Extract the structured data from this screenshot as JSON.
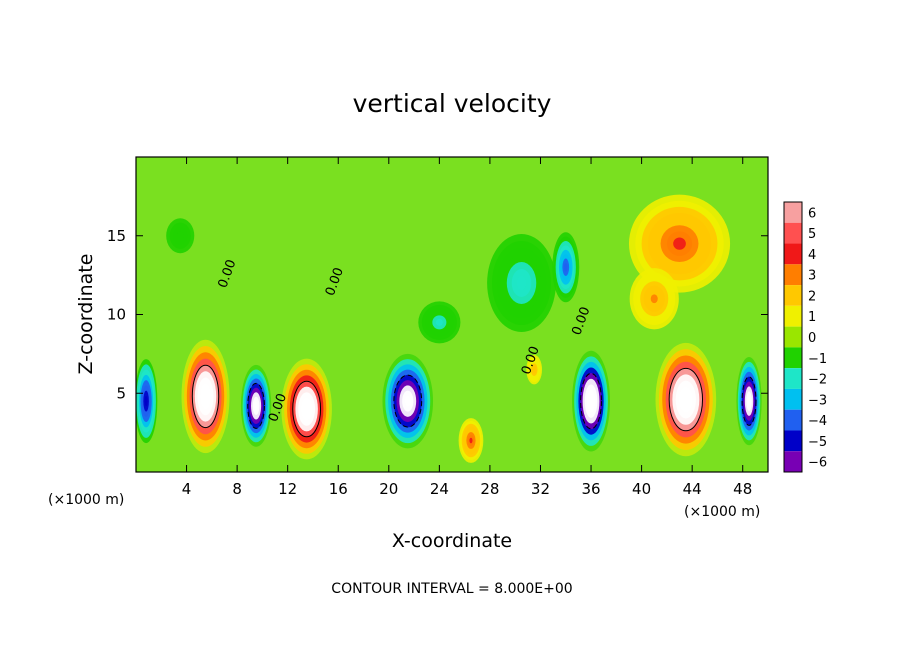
{
  "chart_data": {
    "type": "heatmap",
    "title": "vertical velocity",
    "xlabel": "X-coordinate",
    "ylabel": "Z-coordinate",
    "x_unit_left": "(×1000 m)",
    "x_unit_right": "(×1000 m)",
    "xlim": [
      0,
      50
    ],
    "ylim": [
      0,
      20
    ],
    "xticks": [
      4,
      8,
      12,
      16,
      20,
      24,
      28,
      32,
      36,
      40,
      44,
      48
    ],
    "xtick_labels": [
      "4",
      "8",
      "12",
      "16",
      "20",
      "24",
      "28",
      "32",
      "36",
      "40",
      "44",
      "48"
    ],
    "yticks": [
      5,
      10,
      15
    ],
    "ytick_labels": [
      "5",
      "10",
      "15"
    ],
    "footnote": "CONTOUR INTERVAL = 8.000E+00",
    "contour_label": "0.00",
    "colorbar": {
      "levels": [
        6,
        5,
        4,
        3,
        2,
        1,
        0,
        -1,
        -2,
        -3,
        -4,
        -5,
        -6
      ],
      "labels": [
        "6",
        "5",
        "4",
        "3",
        "2",
        "1",
        "0",
        "−1",
        "−2",
        "−3",
        "−4",
        "−5",
        "−6"
      ],
      "colors": [
        "#f7a0a0",
        "#ff5050",
        "#f01818",
        "#ff7e00",
        "#ffc800",
        "#f0f000",
        "#9ae600",
        "#20d200",
        "#1ee6c8",
        "#00c0f0",
        "#2060f0",
        "#0000c8",
        "#7800b4"
      ]
    },
    "background_color": "#7ae020",
    "features": [
      {
        "kind": "updraft-core",
        "x": 5.5,
        "z": 4.8,
        "sx": 1.9,
        "sz": 3.6,
        "w": 12
      },
      {
        "kind": "updraft-core",
        "x": 13.5,
        "z": 4.0,
        "sx": 2.0,
        "sz": 3.2,
        "w": 11
      },
      {
        "kind": "updraft-core",
        "x": 43.5,
        "z": 4.6,
        "sx": 2.4,
        "sz": 3.6,
        "w": 12
      },
      {
        "kind": "updraft",
        "x": 26.5,
        "z": 2.0,
        "sx": 1.1,
        "sz": 1.6,
        "w": 4
      },
      {
        "kind": "updraft",
        "x": 31.5,
        "z": 6.5,
        "sx": 0.8,
        "sz": 1.2,
        "w": 2.5
      },
      {
        "kind": "updraft",
        "x": 43.0,
        "z": 14.5,
        "sx": 4.5,
        "sz": 3.5,
        "w": 4.2
      },
      {
        "kind": "updraft",
        "x": 41.0,
        "z": 11.0,
        "sx": 2.5,
        "sz": 2.5,
        "w": 2.8
      },
      {
        "kind": "downdraft-core",
        "x": 9.5,
        "z": 4.2,
        "sx": 1.2,
        "sz": 2.6,
        "w": -10
      },
      {
        "kind": "downdraft-core",
        "x": 21.5,
        "z": 4.5,
        "sx": 2.0,
        "sz": 3.0,
        "w": -10
      },
      {
        "kind": "downdraft-core",
        "x": 36.0,
        "z": 4.5,
        "sx": 1.5,
        "sz": 3.2,
        "w": -12
      },
      {
        "kind": "downdraft-core",
        "x": 48.5,
        "z": 4.5,
        "sx": 1.0,
        "sz": 2.8,
        "w": -10
      },
      {
        "kind": "downdraft",
        "x": 0.8,
        "z": 4.5,
        "sx": 1.0,
        "sz": 3.0,
        "w": -6
      },
      {
        "kind": "downdraft",
        "x": 34.0,
        "z": 13.0,
        "sx": 1.2,
        "sz": 2.5,
        "w": -5
      },
      {
        "kind": "downdraft",
        "x": 30.5,
        "z": 12.0,
        "sx": 3.5,
        "sz": 4.0,
        "w": -2.3
      },
      {
        "kind": "downdraft",
        "x": 24.0,
        "z": 9.5,
        "sx": 2.5,
        "sz": 2.0,
        "w": -2
      },
      {
        "kind": "downdraft",
        "x": 3.5,
        "z": 15.0,
        "sx": 2.5,
        "sz": 2.5,
        "w": -1.2
      }
    ]
  }
}
